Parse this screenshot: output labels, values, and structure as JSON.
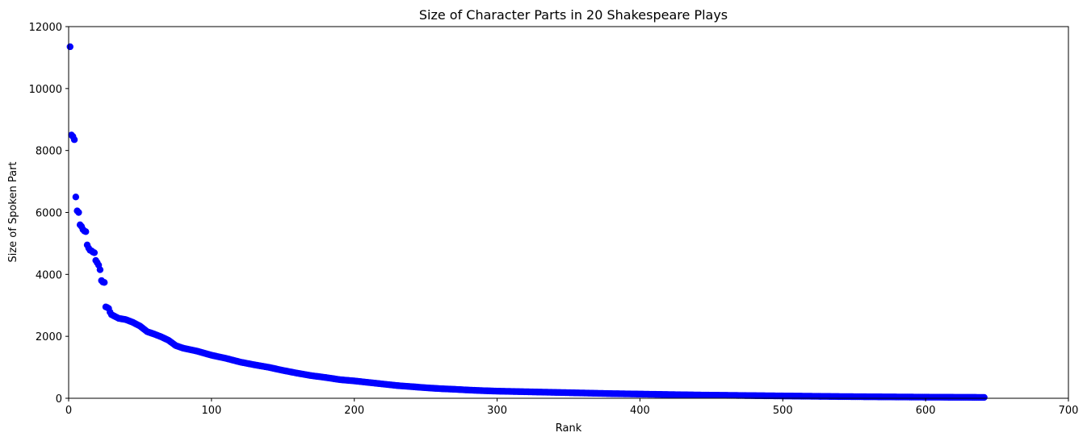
{
  "chart_data": {
    "type": "scatter",
    "title": "Size of Character Parts in 20 Shakespeare Plays",
    "xlabel": "Rank",
    "ylabel": "Size of Spoken Part",
    "xlim": [
      0,
      700
    ],
    "ylim": [
      0,
      12000
    ],
    "x_ticks": [
      0,
      100,
      200,
      300,
      400,
      500,
      600,
      700
    ],
    "y_ticks": [
      0,
      2000,
      4000,
      6000,
      8000,
      10000,
      12000
    ],
    "grid": false,
    "marker_color": "#0000ff",
    "n_points": 641,
    "series": [
      {
        "x": [
          1,
          2,
          3,
          4,
          5,
          6,
          7,
          8,
          9,
          10,
          11,
          12,
          13,
          14,
          15,
          16,
          17,
          18,
          19,
          20,
          21,
          22,
          23,
          24,
          25,
          26,
          27,
          28,
          29,
          30,
          35,
          40,
          45,
          50,
          55,
          60,
          65,
          70,
          75,
          80,
          90,
          100,
          110,
          120,
          130,
          140,
          150,
          160,
          170,
          180,
          190,
          200,
          210,
          220,
          230,
          240,
          250,
          260,
          270,
          280,
          290,
          300,
          320,
          340,
          360,
          380,
          400,
          420,
          440,
          460,
          480,
          500,
          520,
          540,
          560,
          580,
          600,
          620,
          641
        ],
        "y": [
          11350,
          8500,
          8450,
          8350,
          6500,
          6050,
          6000,
          5600,
          5550,
          5450,
          5400,
          5380,
          4950,
          4850,
          4780,
          4760,
          4720,
          4700,
          4450,
          4380,
          4300,
          4150,
          3800,
          3750,
          3740,
          2950,
          2930,
          2900,
          2780,
          2700,
          2580,
          2540,
          2450,
          2330,
          2150,
          2070,
          1980,
          1870,
          1700,
          1620,
          1520,
          1390,
          1290,
          1170,
          1080,
          1000,
          900,
          810,
          730,
          670,
          600,
          560,
          510,
          460,
          410,
          375,
          340,
          310,
          290,
          265,
          245,
          230,
          210,
          190,
          170,
          150,
          135,
          120,
          105,
          95,
          85,
          75,
          65,
          55,
          48,
          42,
          36,
          32,
          28
        ]
      }
    ]
  }
}
